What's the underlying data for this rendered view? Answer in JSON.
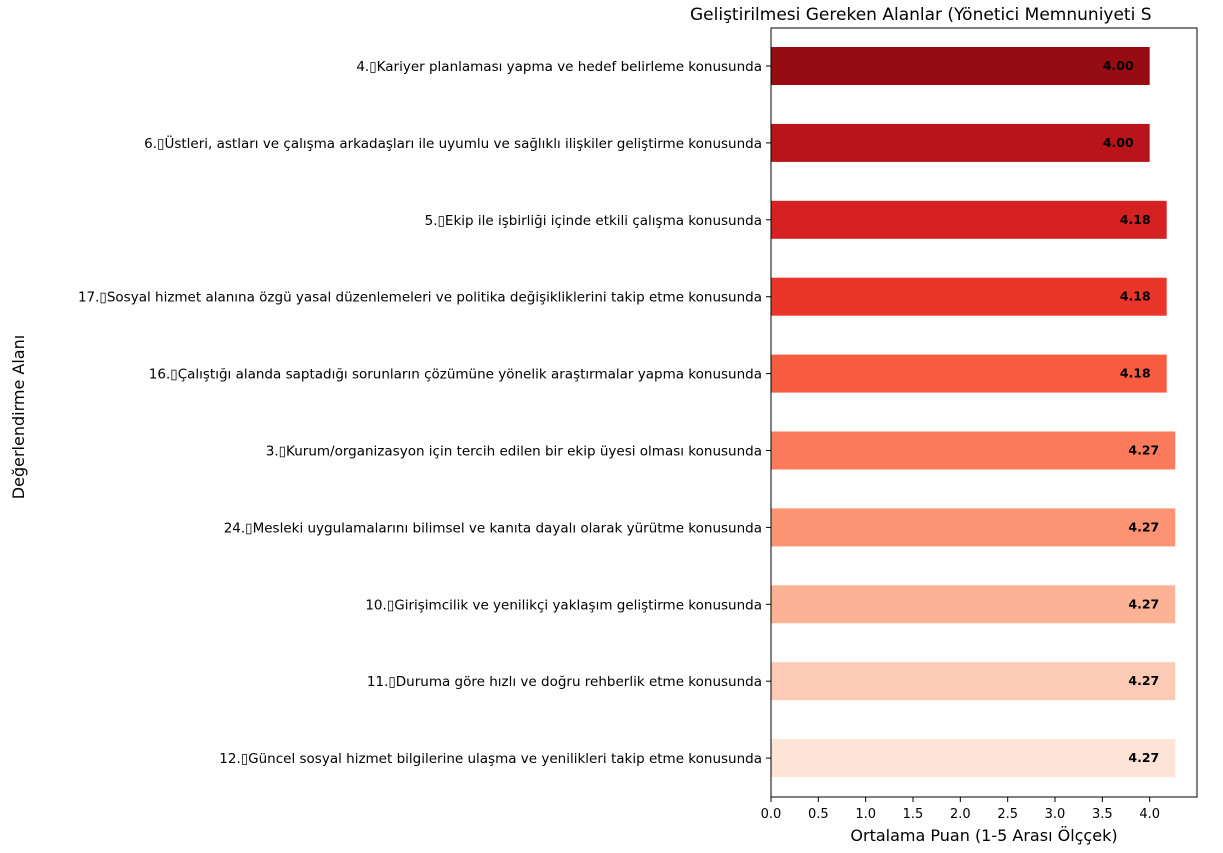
{
  "chart_data": {
    "type": "bar",
    "orientation": "horizontal",
    "title": "Geliştirilmesi Gereken Alanlar (Yönetici Memnuniyeti S",
    "xlabel": "Ortalama Puan (1-5 Arası Ölççek)",
    "ylabel": "Değerlendirme Alanı",
    "xlim": [
      0,
      4.5
    ],
    "xticks": [
      "0.0",
      "0.5",
      "1.0",
      "1.5",
      "2.0",
      "2.5",
      "3.0",
      "3.5",
      "4.0"
    ],
    "grid": false,
    "categories": [
      "4.▯Kariyer planlaması yapma ve hedef belirleme konusunda",
      "6.▯Üstleri, astları ve çalışma arkadaşları ile uyumlu ve sağlıklı ilişkiler geliştirme konusunda",
      "5.▯Ekip ile işbirliği içinde etkili çalışma konusunda",
      "17.▯Sosyal hizmet alanına özgü yasal düzenlemeleri ve politika değişikliklerini takip etme konusunda",
      "16.▯Çalıştığı alanda saptadığı sorunların çözümüne yönelik araştırmalar yapma konusunda",
      "3.▯Kurum/organizasyon için tercih edilen bir ekip üyesi olması konusunda",
      "24.▯Mesleki uygulamalarını bilimsel ve kanıta dayalı olarak yürütme konusunda",
      "10.▯Girişimcilik ve yenilikçi yaklaşım geliştirme konusunda",
      "11.▯Duruma göre hızlı ve doğru rehberlik etme konusunda",
      "12.▯Güncel sosyal hizmet bilgilerine ulaşma ve yenilikleri takip etme konusunda"
    ],
    "values": [
      4.0,
      4.0,
      4.18,
      4.18,
      4.18,
      4.27,
      4.27,
      4.27,
      4.27,
      4.27
    ],
    "value_labels": [
      "4.00",
      "4.00",
      "4.18",
      "4.18",
      "4.18",
      "4.27",
      "4.27",
      "4.27",
      "4.27",
      "4.27"
    ],
    "colors": [
      "#960c12",
      "#b81419",
      "#d52121",
      "#ea362a",
      "#f75c41",
      "#fc7b5c",
      "#fc9474",
      "#fcb295",
      "#fdcbb5",
      "#fee3d7"
    ]
  }
}
